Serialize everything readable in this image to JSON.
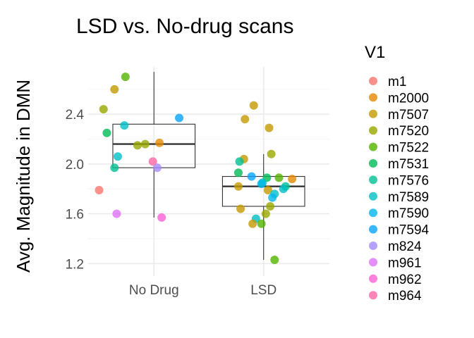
{
  "chart_data": {
    "type": "scatter",
    "subtype": "boxplot-with-jitter",
    "title": "LSD vs. No-drug scans",
    "xlabel": "",
    "ylabel": "Avg. Magnitude in DMN",
    "categories": [
      "No Drug",
      "LSD"
    ],
    "y_ticks": [
      1.2,
      1.6,
      2.0,
      2.4
    ],
    "y_tick_labels": [
      "1.2",
      "1.6",
      "2.0",
      "2.4"
    ],
    "ylim": [
      1.1,
      2.78
    ],
    "grid": true,
    "legend": {
      "title": "V1",
      "position": "right",
      "entries": [
        {
          "label": "m1",
          "color": "#F8766D"
        },
        {
          "label": "m2000",
          "color": "#E38900"
        },
        {
          "label": "m7507",
          "color": "#C49A00"
        },
        {
          "label": "m7520",
          "color": "#99A800"
        },
        {
          "label": "m7522",
          "color": "#53B400"
        },
        {
          "label": "m7531",
          "color": "#00BC56"
        },
        {
          "label": "m7576",
          "color": "#00C094"
        },
        {
          "label": "m7589",
          "color": "#00BFC4"
        },
        {
          "label": "m7590",
          "color": "#00B6EB"
        },
        {
          "label": "m7594",
          "color": "#06A4FF"
        },
        {
          "label": "m824",
          "color": "#A58AFF"
        },
        {
          "label": "m961",
          "color": "#DF70F8"
        },
        {
          "label": "m962",
          "color": "#FB61D7"
        },
        {
          "label": "m964",
          "color": "#FF66A8"
        }
      ]
    },
    "boxes": [
      {
        "category": "No Drug",
        "min": 1.57,
        "q1": 1.97,
        "median": 2.16,
        "q3": 2.32,
        "max": 2.74
      },
      {
        "category": "LSD",
        "min": 1.23,
        "q1": 1.66,
        "median": 1.82,
        "q3": 1.9,
        "max": 2.08
      }
    ],
    "points": [
      {
        "category": "No Drug",
        "jitter": 0.74,
        "value": 2.7,
        "series": "m7522"
      },
      {
        "category": "No Drug",
        "jitter": 0.64,
        "value": 2.6,
        "series": "m7507"
      },
      {
        "category": "No Drug",
        "jitter": 0.54,
        "value": 2.44,
        "series": "m7520"
      },
      {
        "category": "No Drug",
        "jitter": 0.73,
        "value": 2.31,
        "series": "m7589"
      },
      {
        "category": "No Drug",
        "jitter": 1.23,
        "value": 2.37,
        "series": "m7594"
      },
      {
        "category": "No Drug",
        "jitter": 0.57,
        "value": 2.25,
        "series": "m7531"
      },
      {
        "category": "No Drug",
        "jitter": 1.05,
        "value": 2.17,
        "series": "m2000"
      },
      {
        "category": "No Drug",
        "jitter": 0.92,
        "value": 2.16,
        "series": "m7520"
      },
      {
        "category": "No Drug",
        "jitter": 0.85,
        "value": 2.15,
        "series": "m7520"
      },
      {
        "category": "No Drug",
        "jitter": 0.67,
        "value": 2.06,
        "series": "m7589"
      },
      {
        "category": "No Drug",
        "jitter": 0.99,
        "value": 2.02,
        "series": "m964"
      },
      {
        "category": "No Drug",
        "jitter": 0.64,
        "value": 1.97,
        "series": "m7576"
      },
      {
        "category": "No Drug",
        "jitter": 1.03,
        "value": 1.97,
        "series": "m824"
      },
      {
        "category": "No Drug",
        "jitter": 0.5,
        "value": 1.79,
        "series": "m1"
      },
      {
        "category": "No Drug",
        "jitter": 0.66,
        "value": 1.6,
        "series": "m961"
      },
      {
        "category": "No Drug",
        "jitter": 1.07,
        "value": 1.57,
        "series": "m962"
      },
      {
        "category": "LSD",
        "jitter": 1.91,
        "value": 2.47,
        "series": "m7507"
      },
      {
        "category": "LSD",
        "jitter": 1.83,
        "value": 2.36,
        "series": "m7507"
      },
      {
        "category": "LSD",
        "jitter": 2.05,
        "value": 2.29,
        "series": "m7507"
      },
      {
        "category": "LSD",
        "jitter": 2.07,
        "value": 2.08,
        "series": "m7520"
      },
      {
        "category": "LSD",
        "jitter": 1.82,
        "value": 2.04,
        "series": "m7507"
      },
      {
        "category": "LSD",
        "jitter": 1.78,
        "value": 2.02,
        "series": "m7576"
      },
      {
        "category": "LSD",
        "jitter": 1.77,
        "value": 1.93,
        "series": "m7531"
      },
      {
        "category": "LSD",
        "jitter": 1.89,
        "value": 1.9,
        "series": "m7594"
      },
      {
        "category": "LSD",
        "jitter": 2.03,
        "value": 1.89,
        "series": "m7531"
      },
      {
        "category": "LSD",
        "jitter": 2.14,
        "value": 1.89,
        "series": "m7522"
      },
      {
        "category": "LSD",
        "jitter": 2.26,
        "value": 1.88,
        "series": "m2000"
      },
      {
        "category": "LSD",
        "jitter": 1.99,
        "value": 1.85,
        "series": "m7589"
      },
      {
        "category": "LSD",
        "jitter": 1.98,
        "value": 1.84,
        "series": "m7590"
      },
      {
        "category": "LSD",
        "jitter": 2.2,
        "value": 1.82,
        "series": "m7576"
      },
      {
        "category": "LSD",
        "jitter": 2.18,
        "value": 1.8,
        "series": "m7589"
      },
      {
        "category": "LSD",
        "jitter": 1.77,
        "value": 1.82,
        "series": "m7507"
      },
      {
        "category": "LSD",
        "jitter": 2.04,
        "value": 1.79,
        "series": "m7507"
      },
      {
        "category": "LSD",
        "jitter": 2.1,
        "value": 1.76,
        "series": "m7589"
      },
      {
        "category": "LSD",
        "jitter": 2.08,
        "value": 1.73,
        "series": "m7590"
      },
      {
        "category": "LSD",
        "jitter": 2.06,
        "value": 1.66,
        "series": "m7520"
      },
      {
        "category": "LSD",
        "jitter": 1.79,
        "value": 1.64,
        "series": "m7507"
      },
      {
        "category": "LSD",
        "jitter": 2.02,
        "value": 1.6,
        "series": "m7520"
      },
      {
        "category": "LSD",
        "jitter": 1.93,
        "value": 1.56,
        "series": "m7589"
      },
      {
        "category": "LSD",
        "jitter": 1.9,
        "value": 1.52,
        "series": "m7507"
      },
      {
        "category": "LSD",
        "jitter": 1.98,
        "value": 1.52,
        "series": "m7522"
      },
      {
        "category": "LSD",
        "jitter": 2.1,
        "value": 1.23,
        "series": "m7522"
      }
    ]
  }
}
